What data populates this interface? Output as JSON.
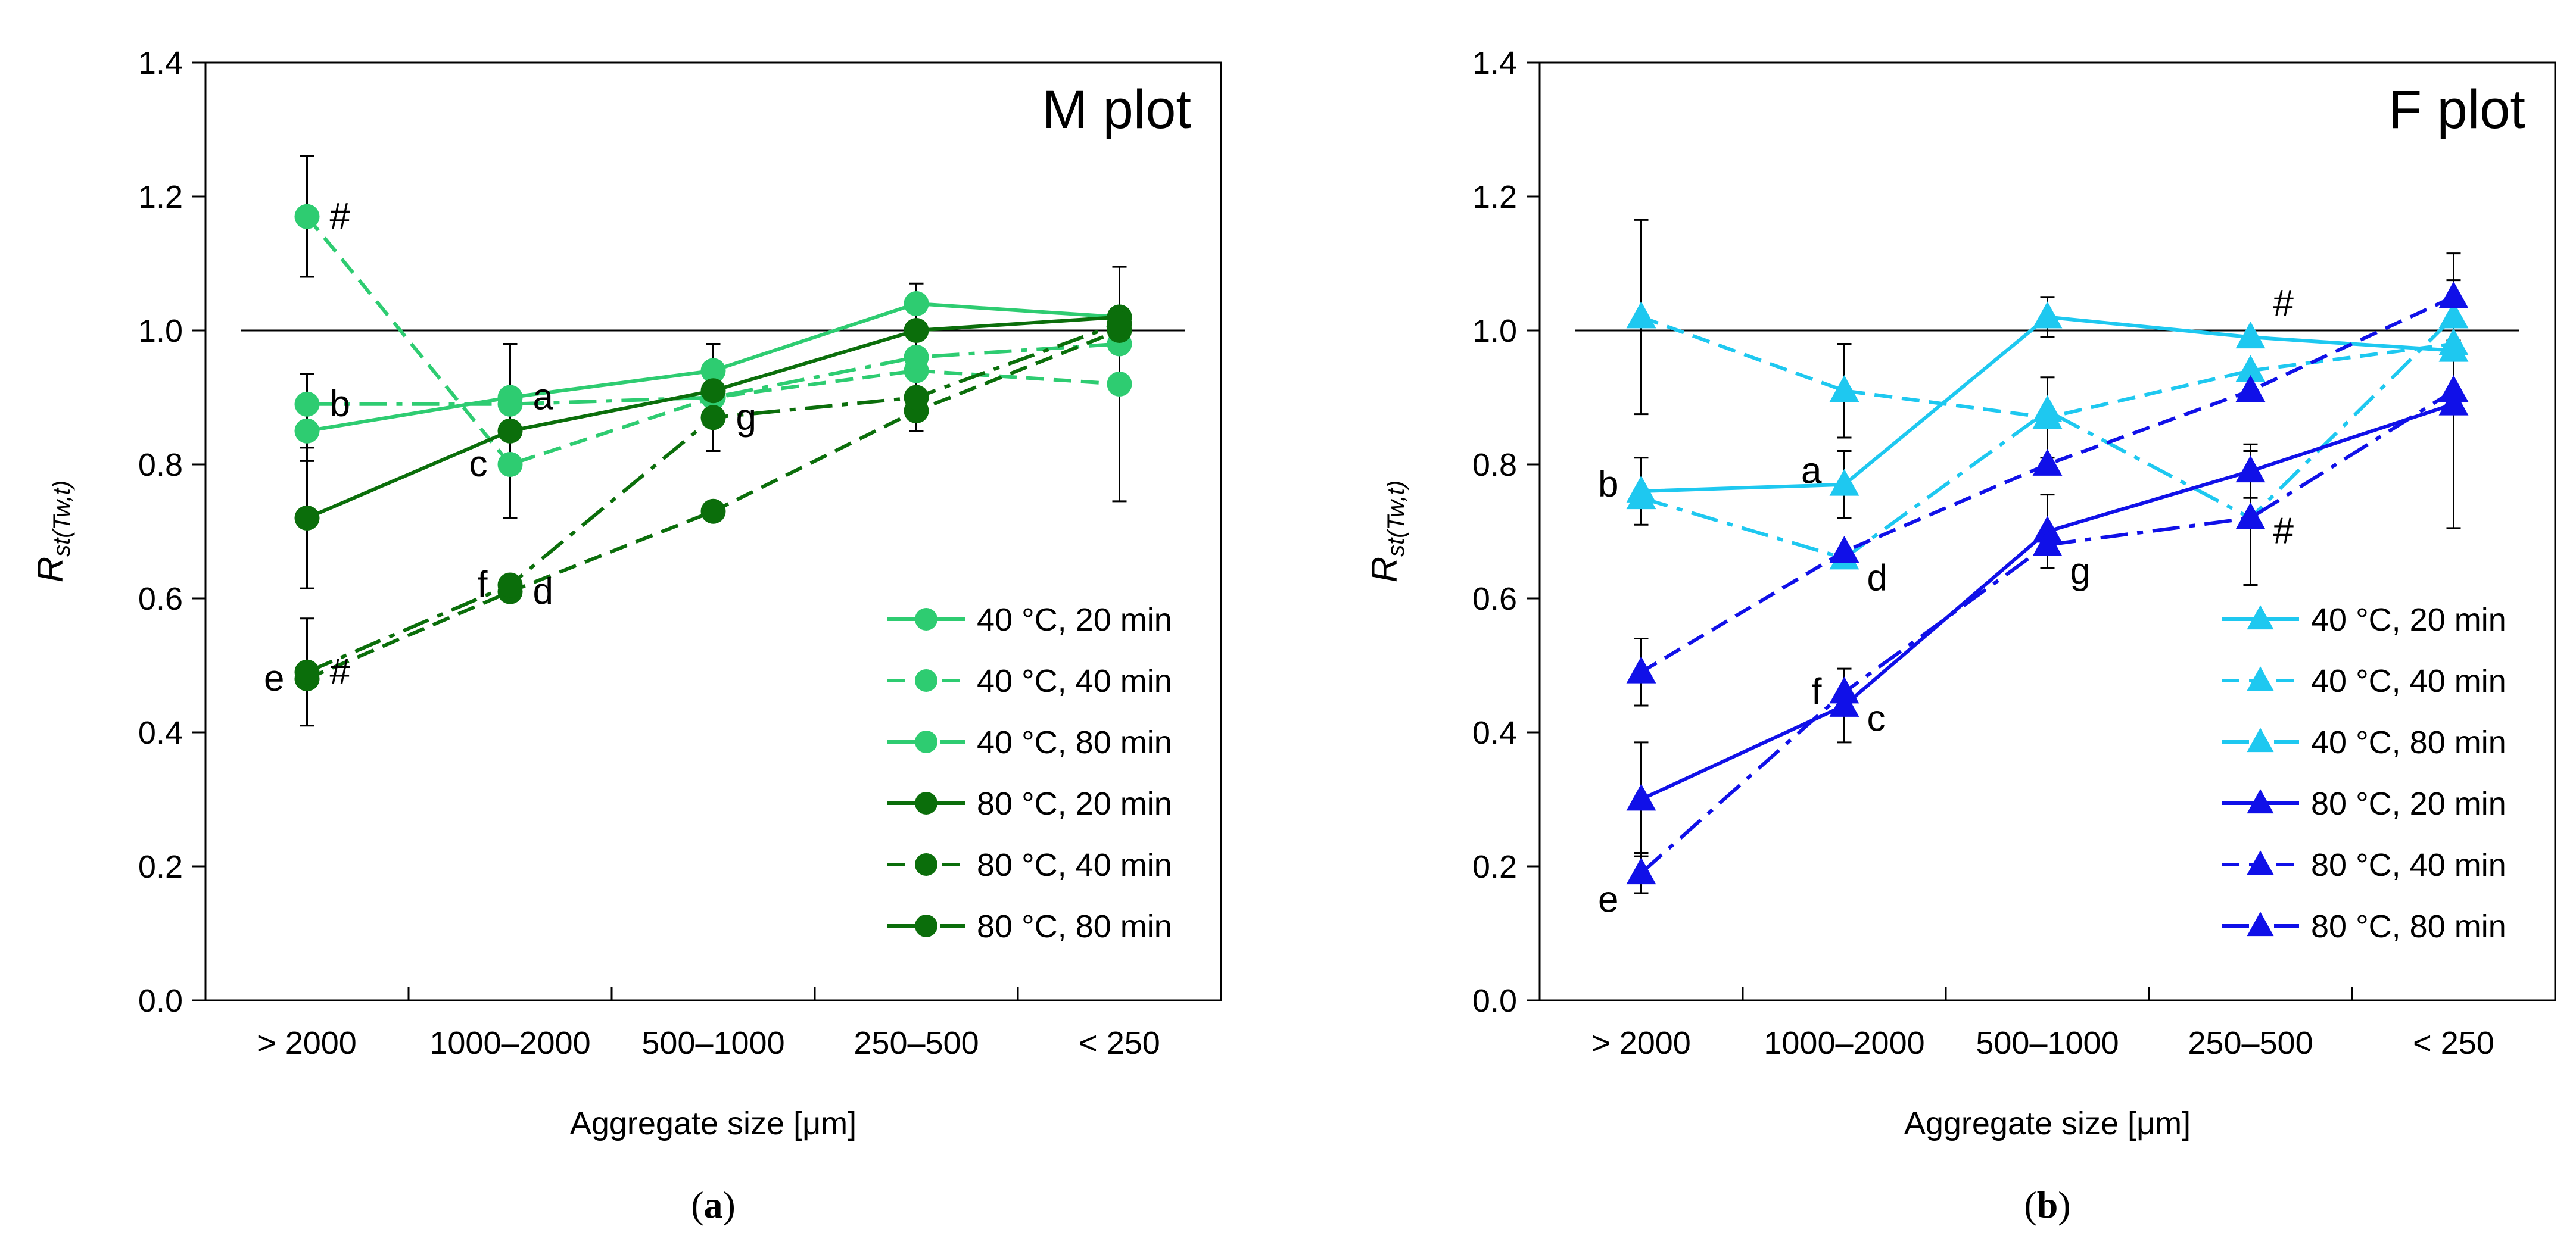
{
  "chart_data": [
    {
      "type": "line",
      "panel": "a",
      "caption": "(a)",
      "caption_letter": "a",
      "title": "M plot",
      "xlabel": "Aggregate size [μm]",
      "ylabel": "R",
      "ylabel_sub": "st(Tw,t)",
      "categories": [
        "> 2000",
        "1000–2000",
        "500–1000",
        "250–500",
        "< 250"
      ],
      "ylim": [
        0,
        1.4
      ],
      "yticks": [
        "0.0",
        "0.2",
        "0.4",
        "0.6",
        "0.8",
        "1.0",
        "1.2",
        "1.4"
      ],
      "reference_line": 1.0,
      "marker": "circle",
      "legend_position": "bottom-right",
      "series": [
        {
          "name": "40 °C, 20 min",
          "color": "#2ECC71",
          "dash": "solid",
          "values": [
            0.85,
            0.9,
            0.94,
            1.04,
            1.02
          ]
        },
        {
          "name": "40 °C, 40 min",
          "color": "#2ECC71",
          "dash": "dash",
          "values": [
            1.17,
            0.8,
            0.9,
            0.94,
            0.92
          ]
        },
        {
          "name": "40 °C, 80 min",
          "color": "#2ECC71",
          "dash": "dashdot",
          "values": [
            0.89,
            0.89,
            0.9,
            0.96,
            0.98
          ]
        },
        {
          "name": "80 °C, 20 min",
          "color": "#0B6E0B",
          "dash": "solid",
          "values": [
            0.72,
            0.85,
            0.91,
            1.0,
            1.02
          ]
        },
        {
          "name": "80 °C, 40 min",
          "color": "#0B6E0B",
          "dash": "dash",
          "values": [
            0.48,
            0.61,
            0.73,
            0.88,
            1.0
          ]
        },
        {
          "name": "80 °C, 80 min",
          "color": "#0B6E0B",
          "dash": "dashdot",
          "values": [
            0.49,
            0.62,
            0.87,
            0.9,
            1.01
          ]
        }
      ],
      "error_bars": [
        {
          "category": 0,
          "y": 1.17,
          "err": 0.09
        },
        {
          "category": 0,
          "y": 0.87,
          "err": 0.065
        },
        {
          "category": 0,
          "y": 0.72,
          "err": 0.105
        },
        {
          "category": 0,
          "y": 0.49,
          "err": 0.08
        },
        {
          "category": 1,
          "y": 0.85,
          "err": 0.13
        },
        {
          "category": 2,
          "y": 0.9,
          "err": 0.08
        },
        {
          "category": 3,
          "y": 0.96,
          "err": 0.11
        },
        {
          "category": 4,
          "y": 0.92,
          "err": 0.175
        }
      ],
      "annotations": [
        {
          "text": "#",
          "category": 0,
          "y": 1.17,
          "side": "right"
        },
        {
          "text": "b",
          "category": 0,
          "y": 0.89,
          "side": "right"
        },
        {
          "text": "#",
          "category": 0,
          "y": 0.49,
          "side": "right"
        },
        {
          "text": "e",
          "category": 0,
          "y": 0.48,
          "side": "left"
        },
        {
          "text": "a",
          "category": 1,
          "y": 0.9,
          "side": "right"
        },
        {
          "text": "c",
          "category": 1,
          "y": 0.8,
          "side": "left"
        },
        {
          "text": "f",
          "category": 1,
          "y": 0.62,
          "side": "left"
        },
        {
          "text": "d",
          "category": 1,
          "y": 0.61,
          "side": "right"
        },
        {
          "text": "g",
          "category": 2,
          "y": 0.87,
          "side": "right"
        }
      ]
    },
    {
      "type": "line",
      "panel": "b",
      "caption": "(b)",
      "caption_letter": "b",
      "title": "F plot",
      "xlabel": "Aggregate size [μm]",
      "ylabel": "R",
      "ylabel_sub": "st(Tw,t)",
      "categories": [
        "> 2000",
        "1000–2000",
        "500–1000",
        "250–500",
        "< 250"
      ],
      "ylim": [
        0,
        1.4
      ],
      "yticks": [
        "0.0",
        "0.2",
        "0.4",
        "0.6",
        "0.8",
        "1.0",
        "1.2",
        "1.4"
      ],
      "reference_line": 1.0,
      "marker": "triangle",
      "legend_position": "bottom-right",
      "series": [
        {
          "name": "40 °C, 20 min",
          "color": "#1EC8F0",
          "dash": "solid",
          "values": [
            0.76,
            0.77,
            1.02,
            0.99,
            0.97
          ]
        },
        {
          "name": "40 °C, 40 min",
          "color": "#1EC8F0",
          "dash": "dash",
          "values": [
            1.02,
            0.91,
            0.87,
            0.94,
            0.98
          ]
        },
        {
          "name": "40 °C, 80 min",
          "color": "#1EC8F0",
          "dash": "dashdot",
          "values": [
            0.75,
            0.66,
            0.88,
            0.72,
            1.02
          ]
        },
        {
          "name": "80 °C, 20 min",
          "color": "#1010E8",
          "dash": "solid",
          "values": [
            0.3,
            0.44,
            0.7,
            0.79,
            0.89
          ]
        },
        {
          "name": "80 °C, 40 min",
          "color": "#1010E8",
          "dash": "dash",
          "values": [
            0.49,
            0.67,
            0.8,
            0.91,
            1.05
          ]
        },
        {
          "name": "80 °C, 80 min",
          "color": "#1010E8",
          "dash": "dashdot",
          "values": [
            0.19,
            0.46,
            0.68,
            0.72,
            0.91
          ]
        }
      ],
      "error_bars": [
        {
          "category": 0,
          "y": 1.02,
          "err": 0.145
        },
        {
          "category": 0,
          "y": 0.76,
          "err": 0.05
        },
        {
          "category": 0,
          "y": 0.49,
          "err": 0.05
        },
        {
          "category": 0,
          "y": 0.3,
          "err": 0.085
        },
        {
          "category": 0,
          "y": 0.19,
          "err": 0.03
        },
        {
          "category": 1,
          "y": 0.91,
          "err": 0.07
        },
        {
          "category": 1,
          "y": 0.77,
          "err": 0.05
        },
        {
          "category": 1,
          "y": 0.44,
          "err": 0.055
        },
        {
          "category": 2,
          "y": 1.02,
          "err": 0.03
        },
        {
          "category": 2,
          "y": 0.87,
          "err": 0.06
        },
        {
          "category": 2,
          "y": 0.7,
          "err": 0.055
        },
        {
          "category": 3,
          "y": 0.72,
          "err": 0.1
        },
        {
          "category": 3,
          "y": 0.79,
          "err": 0.04
        },
        {
          "category": 4,
          "y": 1.05,
          "err": 0.065
        },
        {
          "category": 4,
          "y": 0.89,
          "err": 0.185
        }
      ],
      "annotations": [
        {
          "text": "b",
          "category": 0,
          "y": 0.77,
          "side": "left"
        },
        {
          "text": "e",
          "category": 0,
          "y": 0.15,
          "side": "left"
        },
        {
          "text": "a",
          "category": 1,
          "y": 0.79,
          "side": "left"
        },
        {
          "text": "d",
          "category": 1,
          "y": 0.63,
          "side": "right"
        },
        {
          "text": "f",
          "category": 1,
          "y": 0.46,
          "side": "left"
        },
        {
          "text": "c",
          "category": 1,
          "y": 0.42,
          "side": "right"
        },
        {
          "text": "g",
          "category": 2,
          "y": 0.64,
          "side": "right"
        },
        {
          "text": "#",
          "category": 3,
          "y": 1.04,
          "side": "right"
        },
        {
          "text": "#",
          "category": 3,
          "y": 0.7,
          "side": "right"
        }
      ]
    }
  ]
}
